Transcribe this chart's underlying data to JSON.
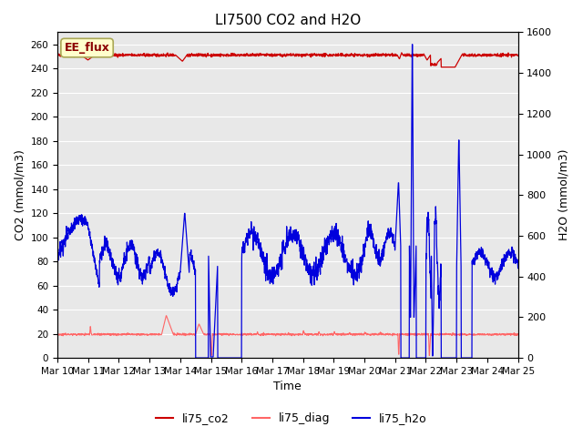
{
  "title": "LI7500 CO2 and H2O",
  "xlabel": "Time",
  "ylabel_left": "CO2 (mmol/m3)",
  "ylabel_right": "H2O (mmol/m3)",
  "ylim_left": [
    0,
    270
  ],
  "ylim_right": [
    0,
    1600
  ],
  "yticks_left": [
    0,
    20,
    40,
    60,
    80,
    100,
    120,
    140,
    160,
    180,
    200,
    220,
    240,
    260
  ],
  "yticks_right": [
    0,
    200,
    400,
    600,
    800,
    1000,
    1200,
    1400,
    1600
  ],
  "xtick_labels": [
    "Mar 10",
    "Mar 11",
    "Mar 12",
    "Mar 13",
    "Mar 14",
    "Mar 15",
    "Mar 16",
    "Mar 17",
    "Mar 18",
    "Mar 19",
    "Mar 20",
    "Mar 21",
    "Mar 22",
    "Mar 23",
    "Mar 24",
    "Mar 25"
  ],
  "annotation_text": "EE_flux",
  "bg_color": "#e8e8e8",
  "co2_color": "#cc0000",
  "diag_color": "#ff6666",
  "h2o_color": "#0000dd",
  "legend_labels": [
    "li75_co2",
    "li75_diag",
    "li75_h2o"
  ],
  "n_points": 2000
}
